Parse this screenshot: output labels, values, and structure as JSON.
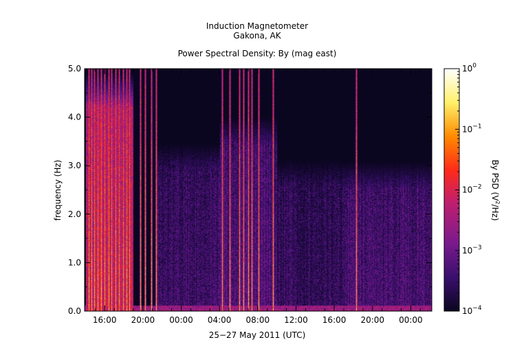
{
  "chart_data": {
    "type": "heatmap",
    "title": "Induction Magnetometer",
    "subtitle": "Gakona, AK",
    "plot_title": "Power Spectral Density: By (mag east)",
    "xlabel": "25−27 May 2011 (UTC)",
    "ylabel": "frequency (Hz)",
    "x_ticks": [
      "16:00",
      "20:00",
      "00:00",
      "04:00",
      "08:00",
      "12:00",
      "16:00",
      "20:00",
      "00:00"
    ],
    "x_tick_hours": [
      16,
      20,
      24,
      28,
      32,
      36,
      40,
      44,
      48
    ],
    "x_range_hours": [
      13.9,
      50.2
    ],
    "y_ticks": [
      "0.0",
      "1.0",
      "2.0",
      "3.0",
      "4.0",
      "5.0"
    ],
    "y_tick_values": [
      0,
      1,
      2,
      3,
      4,
      5
    ],
    "ylim": [
      0,
      5
    ],
    "colorbar": {
      "label": "By PSD (V²/Hz)",
      "label_plain": "By PSD (V",
      "label_sup": "2",
      "label_end": "/Hz)",
      "tick_base": "10",
      "tick_exponents": [
        "−4",
        "−3",
        "−2",
        "−1",
        "0"
      ],
      "range_log10": [
        -4,
        0
      ],
      "colors": [
        "#0b0620",
        "#3a0f6e",
        "#7a1a8c",
        "#c01f6e",
        "#ff2a1a",
        "#ff8a00",
        "#fff06a",
        "#ffffff"
      ]
    },
    "background_log10": -4.2,
    "broadband_events_hours": [
      14.3,
      14.6,
      14.9,
      15.3,
      15.6,
      15.95,
      16.4,
      16.7,
      17.1,
      17.5,
      17.9,
      18.3,
      18.6,
      19.7,
      20.2,
      20.9,
      21.4,
      28.3,
      29.1,
      30.1,
      30.5,
      31.0,
      31.4,
      32.1,
      33.6,
      42.3
    ],
    "activity_regions": [
      {
        "start_hour": 14.0,
        "end_hour": 19.0,
        "max_freq_hz": 5.0,
        "level_log10": -2.2
      },
      {
        "start_hour": 21.4,
        "end_hour": 28.0,
        "max_freq_hz": 3.7,
        "level_log10": -3.4
      },
      {
        "start_hour": 28.0,
        "end_hour": 34.0,
        "max_freq_hz": 4.2,
        "level_log10": -3.2
      },
      {
        "start_hour": 34.0,
        "end_hour": 41.0,
        "max_freq_hz": 3.4,
        "level_log10": -3.5
      },
      {
        "start_hour": 41.0,
        "end_hour": 50.2,
        "max_freq_hz": 3.3,
        "level_log10": -3.3
      }
    ]
  }
}
